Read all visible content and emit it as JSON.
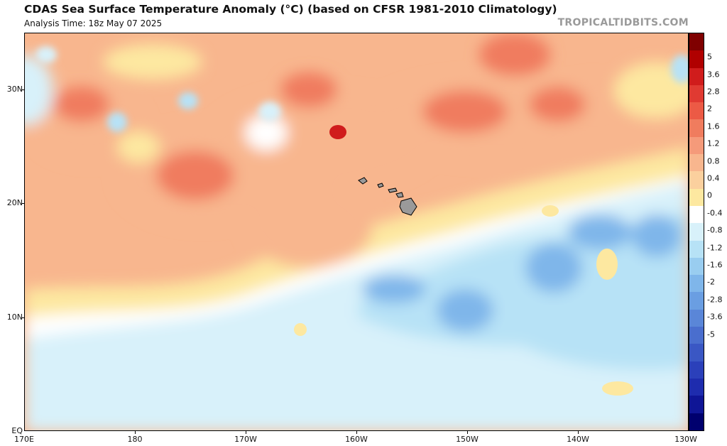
{
  "header": {
    "title": "CDAS Sea Surface Temperature Anomaly (°C) (based on CFSR 1981-2010 Climatology)",
    "subtitle": "Analysis Time: 18z May 07 2025",
    "brand": "TROPICALTIDBITS.COM"
  },
  "axes": {
    "lat_labels": [
      "30N",
      "20N",
      "10N",
      "EQ"
    ],
    "lon_labels": [
      "170E",
      "180",
      "170W",
      "160W",
      "150W",
      "140W",
      "130W"
    ]
  },
  "colorbar": {
    "labels": [
      "5",
      "3.6",
      "2.8",
      "2",
      "1.6",
      "1.2",
      "0.8",
      "0.4",
      "0",
      "-0.4",
      "-0.8",
      "-1.2",
      "-1.6",
      "-2",
      "-2.8",
      "-3.6",
      "-5"
    ],
    "colors": [
      "#7f0000",
      "#b00000",
      "#d01c1c",
      "#e03a32",
      "#ec5a45",
      "#f07c5e",
      "#f59a7a",
      "#f8b68e",
      "#fbd09e",
      "#fde8a0",
      "#ffffff",
      "#d8f1fa",
      "#b7e2f6",
      "#99cdf0",
      "#7fb6ea",
      "#6a9ee2",
      "#5a86d8",
      "#4a6ece",
      "#3a57c4",
      "#2b40ba",
      "#1e2cae",
      "#0f1596",
      "#00006e"
    ]
  },
  "map_colors": {
    "warm_light": "#fbd09e",
    "warm_mid": "#f8b68e",
    "warm_strong": "#f07c5e",
    "warm_hot": "#d01c1c",
    "neutral": "#ffffff",
    "cool_light": "#d8f1fa",
    "cool_mid": "#b7e2f6",
    "cool_strong": "#7fb6ea",
    "yellow": "#fde8a0",
    "land": "#9a9a9a"
  }
}
